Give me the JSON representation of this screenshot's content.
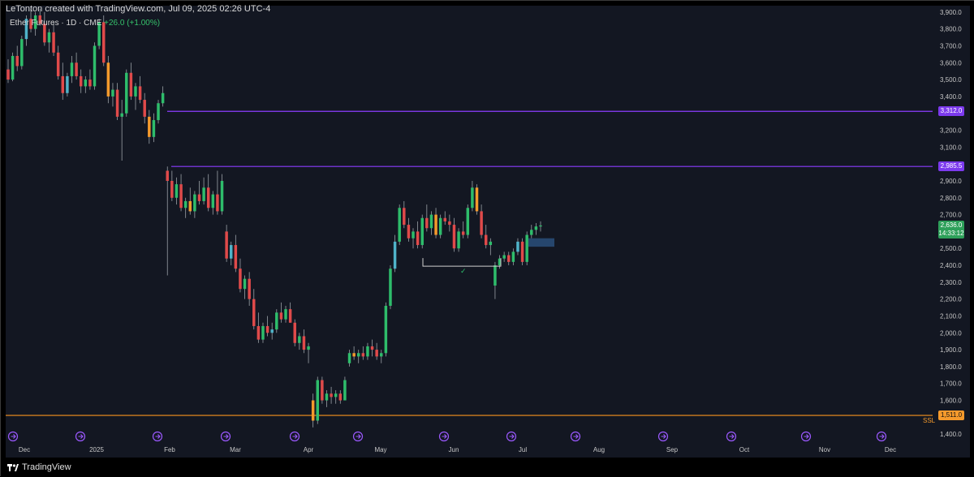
{
  "header": {
    "credit": "LeTonton created with TradingView.com, Jul 09, 2025 02:26 UTC-4",
    "symbol": "Ether Futures · 1D · CME",
    "change": "+26.0 (+1.00%)"
  },
  "footer": {
    "brand": "TradingView"
  },
  "colors": {
    "background": "#131722",
    "up": "#2ebd6b",
    "down": "#e04a4a",
    "up_alt": "#4fb3c9",
    "down_alt": "#f59a2c",
    "level_line": "#8b3dff",
    "ssl_line": "#f7931e",
    "axis_text": "#c7c7c7",
    "event_icon": "#9b59ff"
  },
  "price_axis": {
    "ticks": [
      "3,900.0",
      "3,800.0",
      "3,700.0",
      "3,600.0",
      "3,500.0",
      "3,400.0",
      "3,200.0",
      "3,100.0",
      "3,000.0",
      "2,900.0",
      "2,800.0",
      "2,700.0",
      "2,500.0",
      "2,400.0",
      "2,300.0",
      "2,200.0",
      "2,100.0",
      "2,000.0",
      "1,900.0",
      "1,800.0",
      "1,700.0",
      "1,600.0",
      "1,400.0"
    ]
  },
  "time_axis": {
    "labels": [
      "Dec",
      "2025",
      "Feb",
      "Mar",
      "Apr",
      "May",
      "Jun",
      "Jul",
      "Aug",
      "Sep",
      "Oct",
      "Nov",
      "Dec"
    ]
  },
  "levels": [
    {
      "name": "upper-level",
      "price": 3312.0,
      "label": "3,312.0"
    },
    {
      "name": "lower-level",
      "price": 2985.5,
      "label": "2,985.5"
    },
    {
      "name": "ssl-level",
      "price": 1511.0,
      "label": "1,511.0",
      "tag": "SSL"
    }
  ],
  "current_price": {
    "label": "2,636.0",
    "countdown": "14:33:12"
  },
  "annotations": {
    "checkmark": "✓"
  },
  "chart_data": {
    "type": "candlestick",
    "ylim": [
      1380,
      3920
    ],
    "candles": [
      [
        3560,
        3620,
        3480,
        3500
      ],
      [
        3500,
        3660,
        3490,
        3640
      ],
      [
        3640,
        3700,
        3550,
        3580
      ],
      [
        3580,
        3760,
        3560,
        3740
      ],
      [
        3740,
        3880,
        3700,
        3860
      ],
      [
        3860,
        3920,
        3780,
        3800
      ],
      [
        3800,
        3900,
        3760,
        3880
      ],
      [
        3880,
        3920,
        3820,
        3830
      ],
      [
        3830,
        3900,
        3700,
        3720
      ],
      [
        3720,
        3800,
        3660,
        3780
      ],
      [
        3780,
        3840,
        3640,
        3660
      ],
      [
        3660,
        3700,
        3500,
        3520
      ],
      [
        3520,
        3600,
        3380,
        3420
      ],
      [
        3420,
        3540,
        3400,
        3520
      ],
      [
        3520,
        3640,
        3480,
        3600
      ],
      [
        3600,
        3660,
        3500,
        3520
      ],
      [
        3520,
        3560,
        3420,
        3460
      ],
      [
        3460,
        3520,
        3420,
        3500
      ],
      [
        3500,
        3560,
        3440,
        3460
      ],
      [
        3460,
        3720,
        3440,
        3700
      ],
      [
        3700,
        3860,
        3680,
        3840
      ],
      [
        3840,
        3880,
        3580,
        3600
      ],
      [
        3600,
        3640,
        3360,
        3400
      ],
      [
        3400,
        3480,
        3340,
        3440
      ],
      [
        3440,
        3480,
        3260,
        3280
      ],
      [
        3280,
        3380,
        3020,
        3300
      ],
      [
        3300,
        3560,
        3280,
        3540
      ],
      [
        3540,
        3600,
        3380,
        3400
      ],
      [
        3400,
        3480,
        3320,
        3460
      ],
      [
        3460,
        3520,
        3360,
        3380
      ],
      [
        3380,
        3420,
        3240,
        3280
      ],
      [
        3280,
        3320,
        3120,
        3160
      ],
      [
        3160,
        3300,
        3130,
        3260
      ],
      [
        3260,
        3380,
        3240,
        3360
      ],
      [
        3360,
        3460,
        3340,
        3420
      ],
      [
        2960,
        2985,
        2340,
        2900
      ],
      [
        2900,
        2960,
        2780,
        2800
      ],
      [
        2800,
        2920,
        2760,
        2880
      ],
      [
        2880,
        2940,
        2720,
        2740
      ],
      [
        2740,
        2800,
        2680,
        2780
      ],
      [
        2780,
        2860,
        2700,
        2720
      ],
      [
        2720,
        2840,
        2680,
        2820
      ],
      [
        2820,
        2900,
        2760,
        2780
      ],
      [
        2780,
        2920,
        2760,
        2860
      ],
      [
        2860,
        2940,
        2720,
        2740
      ],
      [
        2740,
        2840,
        2700,
        2820
      ],
      [
        2820,
        2960,
        2700,
        2720
      ],
      [
        2720,
        2940,
        2700,
        2900
      ],
      [
        2600,
        2640,
        2420,
        2440
      ],
      [
        2440,
        2540,
        2400,
        2520
      ],
      [
        2520,
        2580,
        2360,
        2380
      ],
      [
        2380,
        2440,
        2240,
        2260
      ],
      [
        2260,
        2340,
        2200,
        2320
      ],
      [
        2320,
        2360,
        2160,
        2200
      ],
      [
        2200,
        2260,
        2020,
        2040
      ],
      [
        2040,
        2120,
        1940,
        1960
      ],
      [
        1960,
        2060,
        1940,
        2040
      ],
      [
        2040,
        2100,
        1980,
        2000
      ],
      [
        2000,
        2060,
        1960,
        2020
      ],
      [
        2020,
        2140,
        2000,
        2120
      ],
      [
        2120,
        2180,
        2060,
        2080
      ],
      [
        2080,
        2160,
        2060,
        2140
      ],
      [
        2140,
        2180,
        2060,
        2060
      ],
      [
        2060,
        2080,
        1920,
        1940
      ],
      [
        1940,
        2000,
        1900,
        1980
      ],
      [
        1980,
        2020,
        1880,
        1900
      ],
      [
        1900,
        1940,
        1820,
        1920
      ],
      [
        1600,
        1640,
        1440,
        1480
      ],
      [
        1480,
        1740,
        1460,
        1720
      ],
      [
        1720,
        1740,
        1580,
        1600
      ],
      [
        1600,
        1660,
        1560,
        1640
      ],
      [
        1640,
        1680,
        1580,
        1620
      ],
      [
        1620,
        1660,
        1580,
        1640
      ],
      [
        1640,
        1660,
        1580,
        1600
      ],
      [
        1600,
        1740,
        1600,
        1720
      ],
      [
        1820,
        1900,
        1800,
        1880
      ],
      [
        1880,
        1920,
        1840,
        1860
      ],
      [
        1860,
        1900,
        1820,
        1880
      ],
      [
        1880,
        1920,
        1840,
        1860
      ],
      [
        1860,
        1940,
        1840,
        1920
      ],
      [
        1920,
        1960,
        1860,
        1900
      ],
      [
        1900,
        1940,
        1840,
        1860
      ],
      [
        1860,
        1900,
        1820,
        1880
      ],
      [
        1880,
        2180,
        1860,
        2160
      ],
      [
        2160,
        2400,
        2140,
        2380
      ],
      [
        2380,
        2580,
        2360,
        2540
      ],
      [
        2540,
        2760,
        2520,
        2740
      ],
      [
        2740,
        2780,
        2620,
        2640
      ],
      [
        2640,
        2680,
        2540,
        2560
      ],
      [
        2560,
        2620,
        2500,
        2600
      ],
      [
        2600,
        2660,
        2500,
        2520
      ],
      [
        2520,
        2700,
        2500,
        2680
      ],
      [
        2680,
        2760,
        2600,
        2620
      ],
      [
        2620,
        2720,
        2580,
        2700
      ],
      [
        2700,
        2740,
        2560,
        2580
      ],
      [
        2580,
        2700,
        2560,
        2680
      ],
      [
        2680,
        2720,
        2640,
        2660
      ],
      [
        2660,
        2700,
        2600,
        2640
      ],
      [
        2640,
        2680,
        2480,
        2500
      ],
      [
        2500,
        2620,
        2480,
        2600
      ],
      [
        2600,
        2660,
        2560,
        2580
      ],
      [
        2580,
        2760,
        2560,
        2740
      ],
      [
        2740,
        2900,
        2720,
        2860
      ],
      [
        2860,
        2880,
        2700,
        2720
      ],
      [
        2720,
        2760,
        2560,
        2580
      ],
      [
        2580,
        2640,
        2500,
        2520
      ],
      [
        2520,
        2560,
        2460,
        2540
      ],
      [
        2280,
        2420,
        2200,
        2400
      ],
      [
        2400,
        2460,
        2380,
        2440
      ],
      [
        2440,
        2480,
        2420,
        2460
      ],
      [
        2460,
        2480,
        2400,
        2420
      ],
      [
        2420,
        2500,
        2400,
        2480
      ],
      [
        2480,
        2560,
        2460,
        2540
      ],
      [
        2540,
        2560,
        2400,
        2420
      ],
      [
        2420,
        2600,
        2400,
        2580
      ],
      [
        2580,
        2640,
        2560,
        2610
      ],
      [
        2610,
        2650,
        2580,
        2630
      ],
      [
        2630,
        2660,
        2600,
        2636
      ]
    ]
  }
}
